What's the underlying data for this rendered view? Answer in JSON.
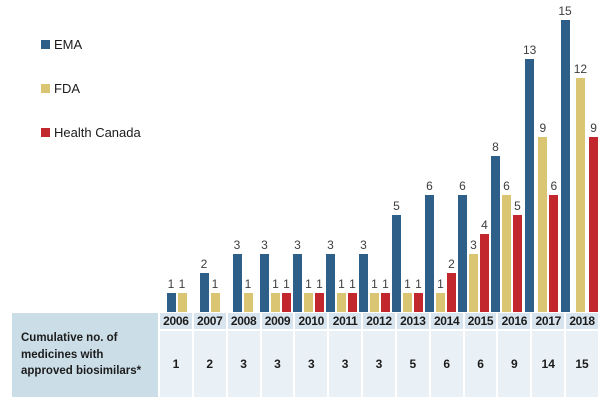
{
  "chart_data": {
    "type": "bar",
    "title": "",
    "xlabel": "",
    "ylabel": "",
    "categories": [
      "2006",
      "2007",
      "2008",
      "2009",
      "2010",
      "2011",
      "2012",
      "2013",
      "2014",
      "2015",
      "2016",
      "2017",
      "2018"
    ],
    "series": [
      {
        "name": "EMA",
        "color": "#2e5f88",
        "values": [
          1,
          2,
          3,
          3,
          3,
          3,
          3,
          5,
          6,
          6,
          8,
          13,
          15
        ]
      },
      {
        "name": "FDA",
        "color": "#d9c572",
        "values": [
          1,
          1,
          1,
          1,
          1,
          1,
          1,
          1,
          1,
          3,
          6,
          9,
          12
        ]
      },
      {
        "name": "Health Canada",
        "color": "#c1272c",
        "values": [
          0,
          0,
          0,
          1,
          1,
          1,
          1,
          1,
          2,
          4,
          5,
          6,
          9
        ]
      }
    ],
    "ylim": [
      0,
      15
    ],
    "grid": false,
    "axes_visible": false,
    "data_labels": true,
    "legend_position": "top-left",
    "zero_values_hidden": true
  },
  "table": {
    "row_label": "Cumulative no. of medicines with approved biosimilars*",
    "years": [
      "2006",
      "2007",
      "2008",
      "2009",
      "2010",
      "2011",
      "2012",
      "2013",
      "2014",
      "2015",
      "2016",
      "2017",
      "2018"
    ],
    "values": [
      "1",
      "2",
      "3",
      "3",
      "3",
      "3",
      "3",
      "5",
      "6",
      "6",
      "9",
      "14",
      "15"
    ]
  },
  "colors": {
    "bar_label_text": "#3d3d3d",
    "legend_text": "#1a1a1a",
    "table_text": "#1c1c1c",
    "table_row_label_bg": "#cbdde7",
    "table_header_bg": "#d8e5ee",
    "table_value_bg": "#eaf1f6",
    "background": "#ffffff"
  }
}
